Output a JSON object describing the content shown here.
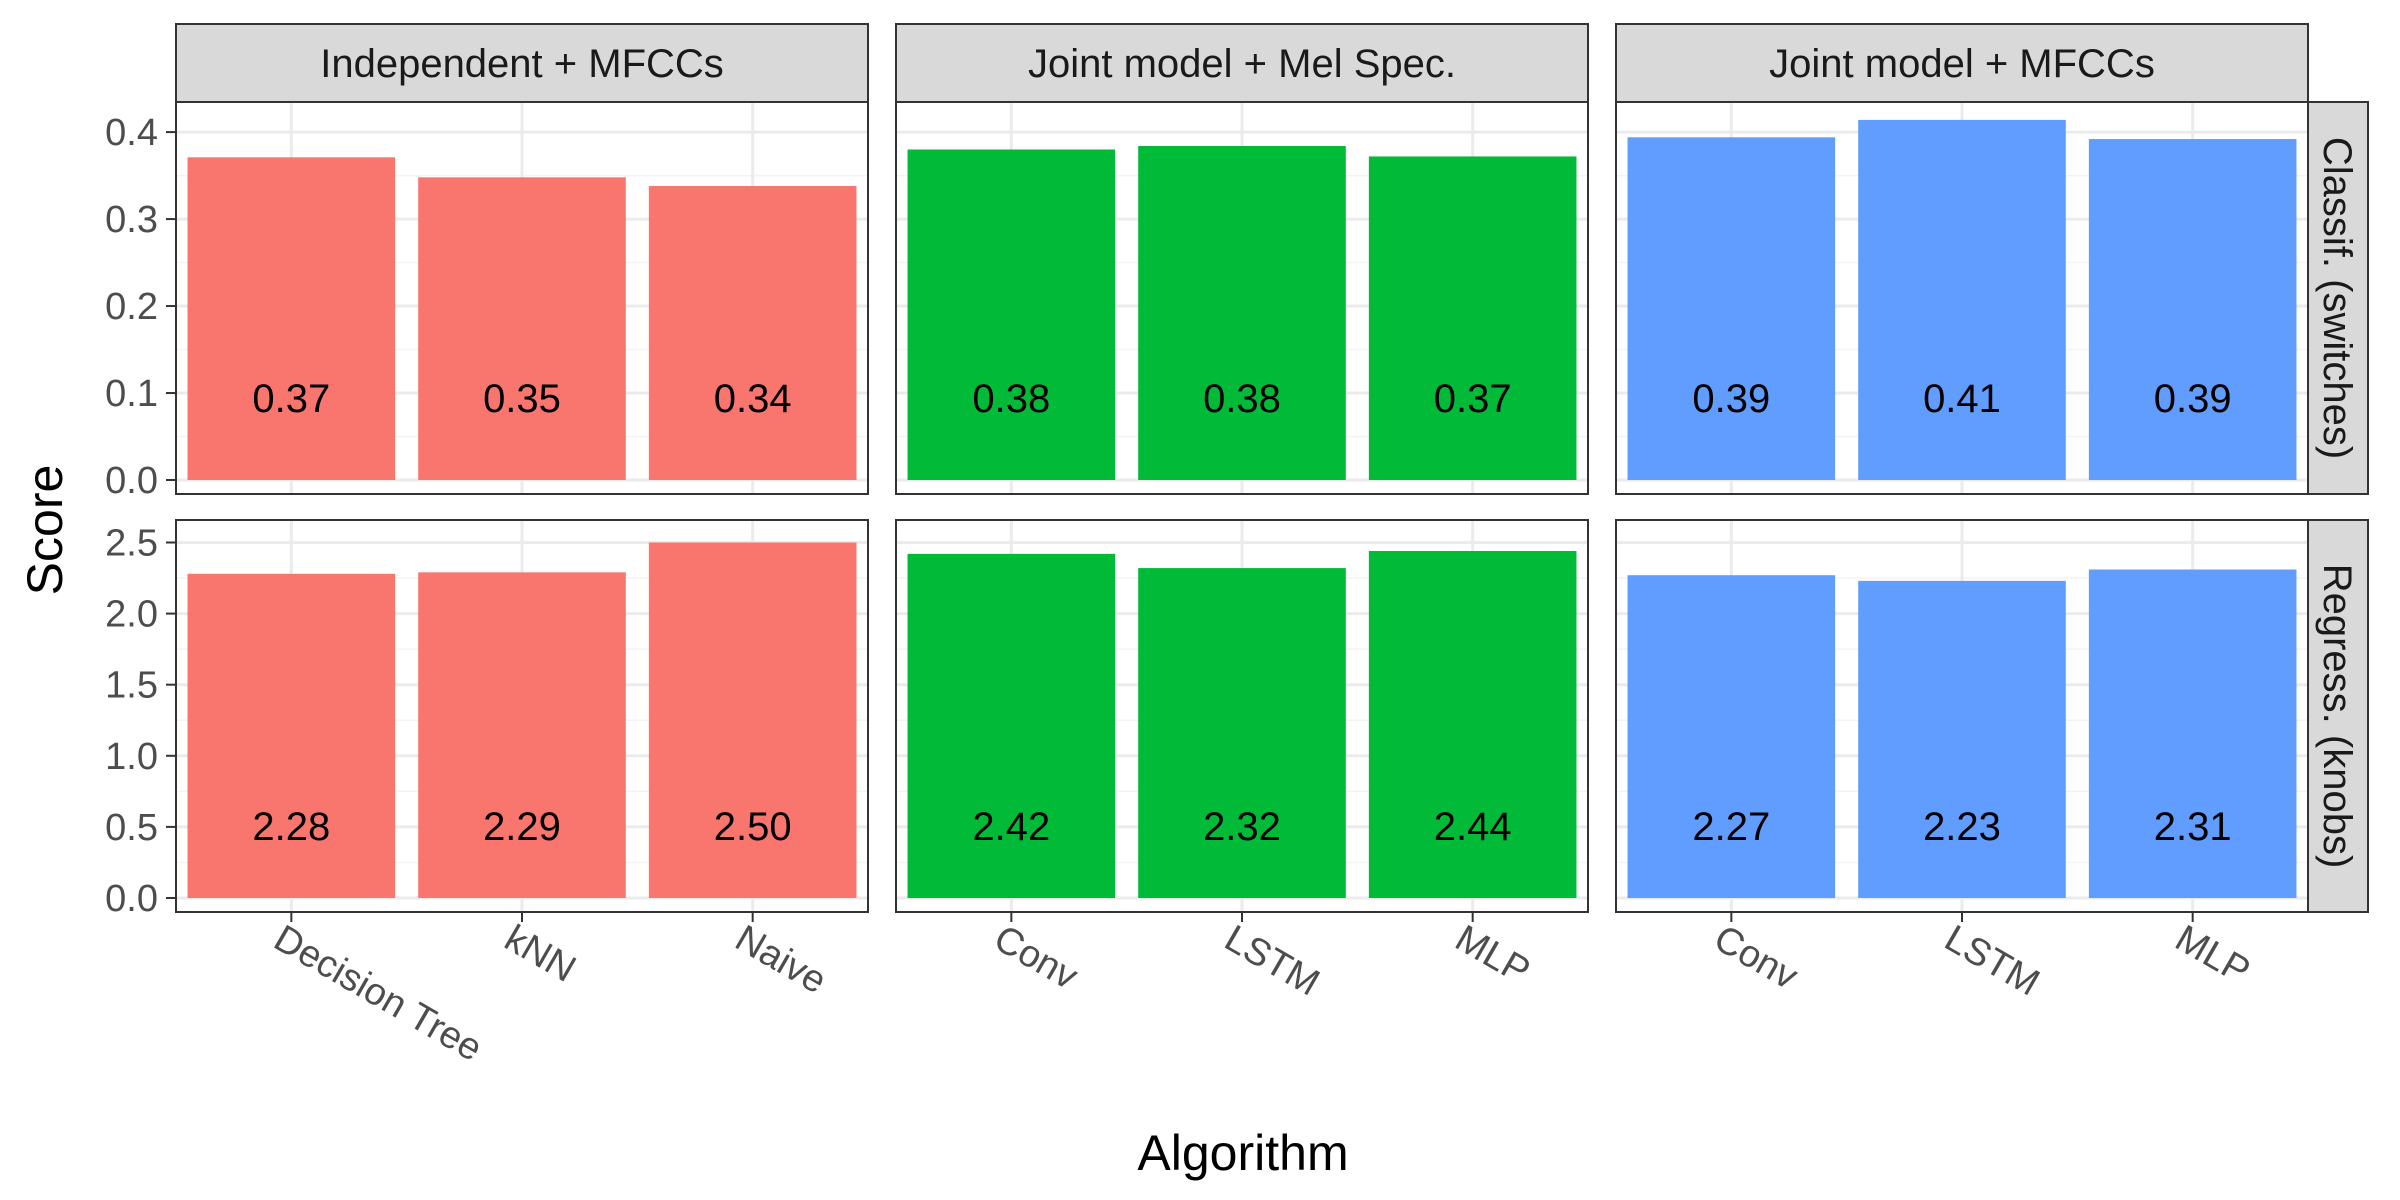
{
  "chart_data": {
    "type": "bar",
    "title": "",
    "xlabel": "Algorithm",
    "ylabel": "Score",
    "grid": true,
    "columns": [
      {
        "label": "Independent + MFCCs",
        "color": "#F8766D",
        "categories": [
          "Decision Tree",
          "kNN",
          "Naive"
        ]
      },
      {
        "label": "Joint model + Mel Spec.",
        "color": "#00BA38",
        "categories": [
          "Conv",
          "LSTM",
          "MLP"
        ]
      },
      {
        "label": "Joint model + MFCCs",
        "color": "#619CFF",
        "categories": [
          "Conv",
          "LSTM",
          "MLP"
        ]
      }
    ],
    "rows": [
      {
        "label": "Classif. (switches)",
        "ylim": [
          0,
          0.43
        ],
        "ticks": [
          "0.0",
          "0.1",
          "0.2",
          "0.3",
          "0.4"
        ],
        "tick_values": [
          0,
          0.1,
          0.2,
          0.3,
          0.4
        ],
        "values": [
          [
            0.371,
            0.348,
            0.338
          ],
          [
            0.38,
            0.384,
            0.372
          ],
          [
            0.394,
            0.414,
            0.392
          ]
        ],
        "labels": [
          [
            "0.37",
            "0.35",
            "0.34"
          ],
          [
            "0.38",
            "0.38",
            "0.37"
          ],
          [
            "0.39",
            "0.41",
            "0.39"
          ]
        ]
      },
      {
        "label": "Regress. (knobs)",
        "ylim": [
          0,
          2.63
        ],
        "ticks": [
          "0.0",
          "0.5",
          "1.0",
          "1.5",
          "2.0",
          "2.5"
        ],
        "tick_values": [
          0,
          0.5,
          1.0,
          1.5,
          2.0,
          2.5
        ],
        "values": [
          [
            2.28,
            2.29,
            2.5
          ],
          [
            2.42,
            2.32,
            2.44
          ],
          [
            2.27,
            2.23,
            2.31
          ]
        ],
        "labels": [
          [
            "2.28",
            "2.29",
            "2.50"
          ],
          [
            "2.42",
            "2.32",
            "2.44"
          ],
          [
            "2.27",
            "2.23",
            "2.31"
          ]
        ]
      }
    ]
  }
}
